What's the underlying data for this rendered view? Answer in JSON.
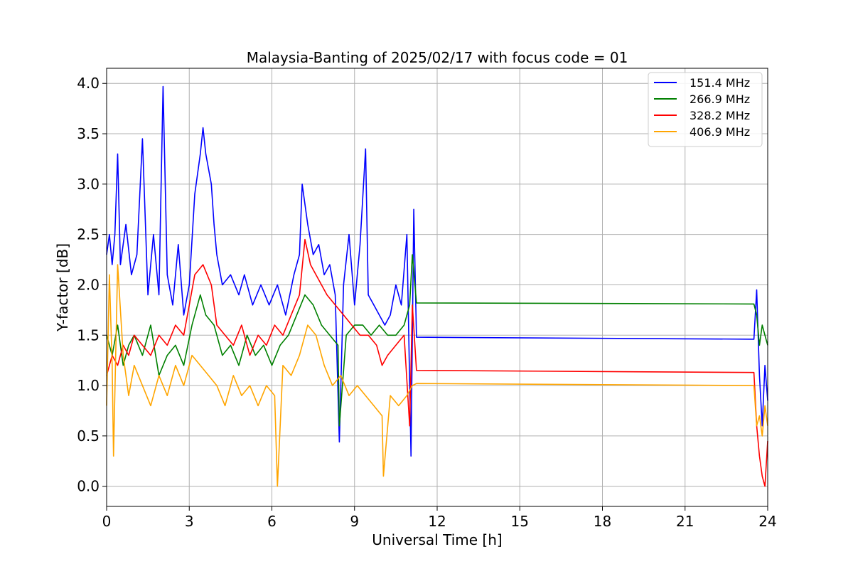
{
  "chart_data": {
    "type": "line",
    "title": "Malaysia-Banting of 2025/02/17 with focus code = 01",
    "xlabel": "Universal Time [h]",
    "ylabel": "Y-factor [dB]",
    "xlim": [
      0,
      24
    ],
    "ylim": [
      -0.2,
      4.15
    ],
    "xticks": [
      0,
      3,
      6,
      9,
      12,
      15,
      18,
      21,
      24
    ],
    "yticks": [
      0.0,
      0.5,
      1.0,
      1.5,
      2.0,
      2.5,
      3.0,
      3.5,
      4.0
    ],
    "ytick_labels": [
      "0.0",
      "0.5",
      "1.0",
      "1.5",
      "2.0",
      "2.5",
      "3.0",
      "3.5",
      "4.0"
    ],
    "grid": true,
    "legend_position": "top-right",
    "series": [
      {
        "name": "151.4 MHz",
        "color": "#0000ff",
        "x": [
          0,
          0.1,
          0.2,
          0.3,
          0.4,
          0.5,
          0.7,
          0.9,
          1.1,
          1.3,
          1.5,
          1.7,
          1.9,
          2.05,
          2.2,
          2.4,
          2.6,
          2.8,
          3.0,
          3.2,
          3.4,
          3.5,
          3.6,
          3.8,
          3.9,
          4.0,
          4.2,
          4.5,
          4.8,
          5.0,
          5.3,
          5.6,
          5.9,
          6.2,
          6.5,
          6.8,
          7.0,
          7.1,
          7.3,
          7.5,
          7.7,
          7.9,
          8.1,
          8.3,
          8.45,
          8.6,
          8.8,
          9.0,
          9.2,
          9.4,
          9.5,
          9.7,
          9.9,
          10.1,
          10.3,
          10.5,
          10.7,
          10.9,
          11.05,
          11.15,
          11.25,
          23.5,
          23.6,
          23.7,
          23.8,
          23.9,
          24.0
        ],
        "y": [
          2.3,
          2.5,
          2.2,
          2.5,
          3.3,
          2.2,
          2.6,
          2.1,
          2.3,
          3.45,
          1.9,
          2.5,
          1.9,
          3.97,
          2.1,
          1.8,
          2.4,
          1.7,
          2.0,
          2.9,
          3.3,
          3.56,
          3.3,
          3.0,
          2.6,
          2.3,
          2.0,
          2.1,
          1.9,
          2.1,
          1.8,
          2.0,
          1.8,
          2.0,
          1.7,
          2.1,
          2.3,
          3.0,
          2.6,
          2.3,
          2.4,
          2.1,
          2.2,
          1.9,
          0.44,
          2.0,
          2.5,
          1.8,
          2.4,
          3.35,
          1.9,
          1.8,
          1.7,
          1.6,
          1.7,
          2.0,
          1.8,
          2.5,
          0.3,
          2.75,
          1.48,
          1.46,
          1.95,
          1.1,
          0.6,
          1.2,
          0.85
        ]
      },
      {
        "name": "266.9 MHz",
        "color": "#008000",
        "x": [
          0,
          0.2,
          0.4,
          0.6,
          0.8,
          1.0,
          1.3,
          1.6,
          1.9,
          2.2,
          2.5,
          2.8,
          3.1,
          3.4,
          3.6,
          3.9,
          4.2,
          4.5,
          4.8,
          5.1,
          5.4,
          5.7,
          6.0,
          6.3,
          6.6,
          6.9,
          7.2,
          7.5,
          7.8,
          8.1,
          8.4,
          8.45,
          8.7,
          9.0,
          9.3,
          9.6,
          9.9,
          10.2,
          10.5,
          10.8,
          11.0,
          11.1,
          11.25,
          23.5,
          23.6,
          23.7,
          23.8,
          23.9,
          24.0
        ],
        "y": [
          1.5,
          1.3,
          1.6,
          1.2,
          1.4,
          1.5,
          1.3,
          1.6,
          1.1,
          1.3,
          1.4,
          1.2,
          1.6,
          1.9,
          1.7,
          1.6,
          1.3,
          1.4,
          1.2,
          1.5,
          1.3,
          1.4,
          1.2,
          1.4,
          1.5,
          1.7,
          1.9,
          1.8,
          1.6,
          1.5,
          1.4,
          0.6,
          1.5,
          1.6,
          1.6,
          1.5,
          1.6,
          1.5,
          1.5,
          1.6,
          1.8,
          2.3,
          1.82,
          1.81,
          1.7,
          1.4,
          1.6,
          1.5,
          1.4
        ]
      },
      {
        "name": "328.2 MHz",
        "color": "#ff0000",
        "x": [
          0,
          0.2,
          0.4,
          0.6,
          0.8,
          1.0,
          1.3,
          1.6,
          1.9,
          2.2,
          2.5,
          2.8,
          3.0,
          3.2,
          3.5,
          3.8,
          4.0,
          4.3,
          4.6,
          4.9,
          5.2,
          5.5,
          5.8,
          6.1,
          6.4,
          6.7,
          7.0,
          7.2,
          7.4,
          7.6,
          7.8,
          8.0,
          8.3,
          8.6,
          8.9,
          9.2,
          9.5,
          9.8,
          10.0,
          10.2,
          10.5,
          10.8,
          11.0,
          11.1,
          11.25,
          23.5,
          23.6,
          23.7,
          23.8,
          23.9,
          24.0
        ],
        "y": [
          1.1,
          1.3,
          1.2,
          1.4,
          1.3,
          1.5,
          1.4,
          1.3,
          1.5,
          1.4,
          1.6,
          1.5,
          1.8,
          2.1,
          2.2,
          2.0,
          1.6,
          1.5,
          1.4,
          1.6,
          1.3,
          1.5,
          1.4,
          1.6,
          1.5,
          1.7,
          1.9,
          2.45,
          2.2,
          2.1,
          2.0,
          1.9,
          1.8,
          1.7,
          1.6,
          1.5,
          1.5,
          1.4,
          1.2,
          1.3,
          1.4,
          1.5,
          0.6,
          1.8,
          1.15,
          1.13,
          0.6,
          0.3,
          0.1,
          0.0,
          0.45
        ]
      },
      {
        "name": "406.9 MHz",
        "color": "#ffa500",
        "x": [
          0,
          0.1,
          0.2,
          0.25,
          0.4,
          0.6,
          0.8,
          1.0,
          1.3,
          1.6,
          1.9,
          2.2,
          2.5,
          2.8,
          3.1,
          3.4,
          3.7,
          4.0,
          4.3,
          4.6,
          4.9,
          5.2,
          5.5,
          5.8,
          6.1,
          6.2,
          6.4,
          6.7,
          7.0,
          7.3,
          7.6,
          7.9,
          8.2,
          8.5,
          8.8,
          9.1,
          9.4,
          9.7,
          10.0,
          10.05,
          10.3,
          10.6,
          10.9,
          11.1,
          11.25,
          23.5,
          23.6,
          23.7,
          23.8,
          23.9,
          24.0
        ],
        "y": [
          0.8,
          2.1,
          1.2,
          0.3,
          2.2,
          1.3,
          0.9,
          1.2,
          1.0,
          0.8,
          1.1,
          0.9,
          1.2,
          1.0,
          1.3,
          1.2,
          1.1,
          1.0,
          0.8,
          1.1,
          0.9,
          1.0,
          0.8,
          1.0,
          0.9,
          0.0,
          1.2,
          1.1,
          1.3,
          1.6,
          1.5,
          1.2,
          1.0,
          1.1,
          0.9,
          1.0,
          0.9,
          0.8,
          0.7,
          0.1,
          0.9,
          0.8,
          0.9,
          1.0,
          1.02,
          1.0,
          0.6,
          0.7,
          0.5,
          0.8,
          0.6
        ]
      }
    ]
  }
}
